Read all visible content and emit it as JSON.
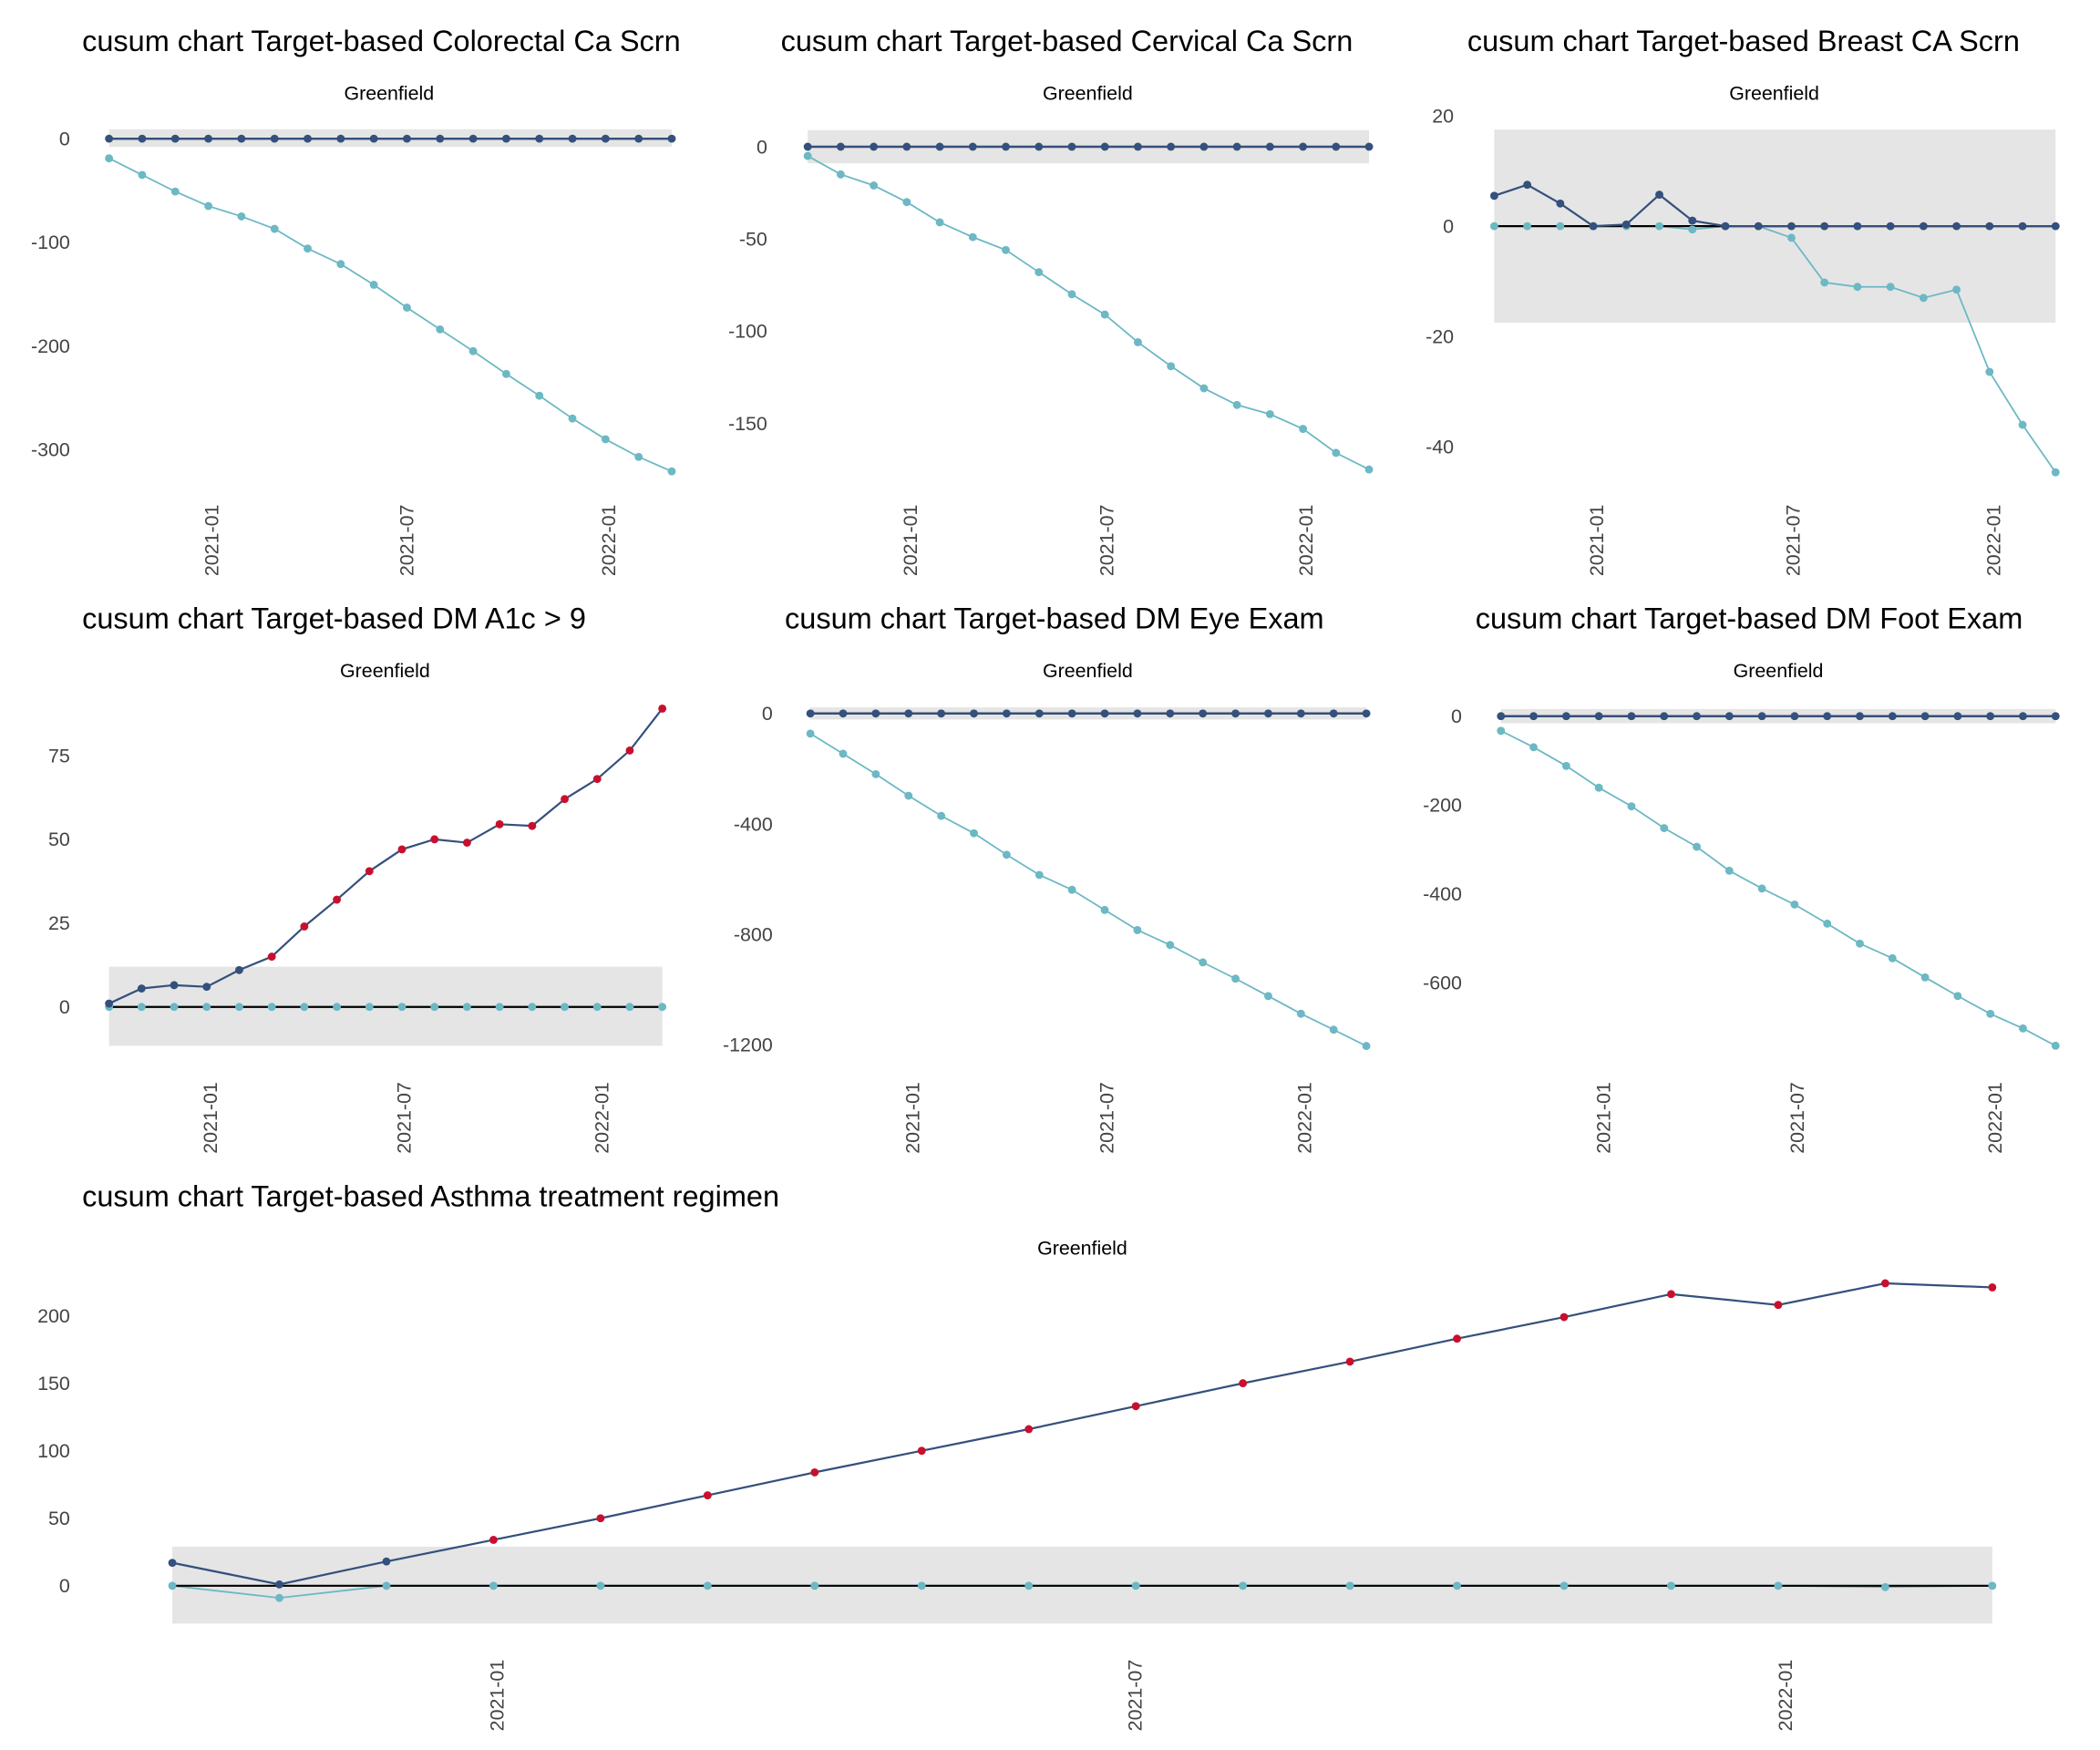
{
  "colors": {
    "upper_series": "#34507c",
    "lower_series": "#6cb8c4",
    "out_of_control": "#c8102e",
    "control_band": "#e5e5e5",
    "zero_line": "#000000"
  },
  "months": [
    "2020-10",
    "2020-11",
    "2020-12",
    "2021-01",
    "2021-02",
    "2021-03",
    "2021-04",
    "2021-05",
    "2021-06",
    "2021-07",
    "2021-08",
    "2021-09",
    "2021-10",
    "2021-11",
    "2021-12",
    "2022-01",
    "2022-02",
    "2022-03"
  ],
  "chart_data": [
    {
      "type": "line",
      "title": "cusum chart Target-based  Colorectal Ca Scrn",
      "subtitle": "Greenfield",
      "xticks": [
        "2021-01",
        "2021-07",
        "2022-01"
      ],
      "yticks": [
        0,
        -100,
        -200,
        -300
      ],
      "control_limits": [
        -8,
        9
      ],
      "series": [
        {
          "values": [
            0,
            0,
            0,
            0,
            0,
            0,
            0,
            0,
            0,
            0,
            0,
            0,
            0,
            0,
            0,
            0,
            0,
            0
          ]
        },
        {
          "values": [
            -19,
            -35,
            -51,
            -65,
            -75,
            -87,
            -106,
            -121,
            -141,
            -163,
            -184,
            -205,
            -227,
            -248,
            -270,
            -290,
            -307,
            -321
          ]
        }
      ]
    },
    {
      "type": "line",
      "title": "cusum chart Target-based  Cervical Ca Scrn",
      "subtitle": "Greenfield",
      "xticks": [
        "2021-01",
        "2021-07",
        "2022-01"
      ],
      "yticks": [
        0,
        -50,
        -100,
        -150
      ],
      "control_limits": [
        -9,
        9
      ],
      "series": [
        {
          "values": [
            0,
            0,
            0,
            0,
            0,
            0,
            0,
            0,
            0,
            0,
            0,
            0,
            0,
            0,
            0,
            0,
            0,
            0
          ]
        },
        {
          "values": [
            -5,
            -15,
            -21,
            -30,
            -41,
            -49,
            -56,
            -68,
            -80,
            -91,
            -106,
            -119,
            -131,
            -140,
            -145,
            -153,
            -166,
            -175
          ]
        }
      ]
    },
    {
      "type": "line",
      "title": "cusum chart Target-based  Breast CA Scrn",
      "subtitle": "Greenfield",
      "xticks": [
        "2021-01",
        "2021-07",
        "2022-01"
      ],
      "yticks": [
        20,
        0,
        -20,
        -40
      ],
      "control_limits": [
        -17.5,
        17.5
      ],
      "series": [
        {
          "values": [
            5.5,
            7.5,
            4.1,
            0,
            0.3,
            5.7,
            1,
            0,
            0,
            0,
            0,
            0,
            0,
            0,
            0,
            0,
            0,
            0
          ]
        },
        {
          "values": [
            0,
            0,
            0,
            0,
            0,
            0,
            -0.6,
            0,
            0,
            -2.1,
            -10.2,
            -11,
            -11,
            -13,
            -11.5,
            -26.4,
            -36,
            -44.6
          ]
        }
      ]
    },
    {
      "type": "line",
      "title": "cusum chart Target-based  DM A1c > 9",
      "subtitle": "Greenfield",
      "xticks": [
        "2021-01",
        "2021-07",
        "2022-01"
      ],
      "yticks": [
        75,
        50,
        25,
        0
      ],
      "control_limits": [
        -11.6,
        12
      ],
      "series": [
        {
          "values": [
            1,
            5.5,
            6.5,
            6,
            11,
            15,
            24,
            32,
            40.5,
            47,
            50,
            49,
            54.5,
            54,
            62,
            68,
            76.5,
            89
          ]
        },
        {
          "values": [
            0,
            0,
            0,
            0,
            0,
            0,
            0,
            0,
            0,
            0,
            0,
            0,
            0,
            0,
            0,
            0,
            0,
            0
          ]
        }
      ]
    },
    {
      "type": "line",
      "title": "cusum chart Target-based  DM Eye Exam",
      "subtitle": "Greenfield",
      "xticks": [
        "2021-01",
        "2021-07",
        "2022-01"
      ],
      "yticks": [
        0,
        -400,
        -800,
        -1200
      ],
      "control_limits": [
        -22,
        22
      ],
      "series": [
        {
          "values": [
            0,
            0,
            0,
            0,
            0,
            0,
            0,
            0,
            0,
            0,
            0,
            0,
            0,
            0,
            0,
            0,
            0,
            0
          ]
        },
        {
          "values": [
            -73,
            -146,
            -220,
            -298,
            -371,
            -434,
            -512,
            -585,
            -639,
            -712,
            -785,
            -839,
            -902,
            -961,
            -1024,
            -1088,
            -1146,
            -1205
          ]
        }
      ]
    },
    {
      "type": "line",
      "title": "cusum chart Target-based  DM Foot Exam",
      "subtitle": "Greenfield",
      "xticks": [
        "2021-01",
        "2021-07",
        "2022-01"
      ],
      "yticks": [
        0,
        -200,
        -400,
        -600
      ],
      "control_limits": [
        -16,
        16
      ],
      "series": [
        {
          "values": [
            0,
            0,
            0,
            0,
            0,
            0,
            0,
            0,
            0,
            0,
            0,
            0,
            0,
            0,
            0,
            0,
            0,
            0
          ]
        },
        {
          "values": [
            -33,
            -70,
            -112,
            -161,
            -203,
            -252,
            -294,
            -348,
            -388,
            -424,
            -467,
            -512,
            -545,
            -588,
            -630,
            -670,
            -703,
            -742
          ]
        }
      ]
    },
    {
      "type": "line",
      "title": "cusum chart Target-based  Asthma treatment regimen",
      "subtitle": "Greenfield",
      "xticks": [
        "2021-01",
        "2021-07",
        "2022-01"
      ],
      "yticks": [
        200,
        150,
        100,
        50,
        0
      ],
      "control_limits": [
        -28,
        29
      ],
      "series": [
        {
          "values": [
            17,
            1,
            18,
            34,
            50,
            67,
            84,
            100,
            116,
            133,
            150,
            166,
            183,
            199,
            216,
            208,
            224,
            221
          ]
        },
        {
          "values": [
            0,
            -9,
            0,
            0,
            0,
            0,
            0,
            0,
            0,
            0,
            0,
            0,
            0,
            0,
            0,
            0,
            -1,
            0
          ]
        }
      ]
    }
  ]
}
